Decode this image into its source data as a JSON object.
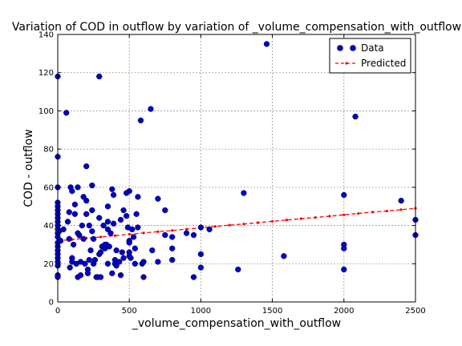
{
  "chart_data": {
    "type": "scatter",
    "title": "Variation of COD in outflow by variation of _volume_compensation_with_outflow",
    "xlabel": "_volume_compensation_with_outflow",
    "ylabel": "COD - outflow",
    "xlim": [
      0,
      2500
    ],
    "ylim": [
      0,
      140
    ],
    "xticks": [
      0,
      500,
      1000,
      1500,
      2000,
      2500
    ],
    "yticks": [
      0,
      20,
      40,
      60,
      80,
      100,
      120,
      140
    ],
    "grid": true,
    "legend_position": "top-right",
    "colors": {
      "data": "#0000cc",
      "predicted": "#ff0000"
    },
    "series": [
      {
        "name": "Data",
        "style": "markers",
        "points": [
          [
            0,
            118
          ],
          [
            0,
            76
          ],
          [
            0,
            60
          ],
          [
            0,
            52
          ],
          [
            0,
            50
          ],
          [
            0,
            48
          ],
          [
            0,
            46
          ],
          [
            0,
            44
          ],
          [
            0,
            42
          ],
          [
            0,
            40
          ],
          [
            0,
            38
          ],
          [
            0,
            36
          ],
          [
            0,
            34
          ],
          [
            0,
            31
          ],
          [
            0,
            29
          ],
          [
            0,
            27
          ],
          [
            0,
            25
          ],
          [
            0,
            23
          ],
          [
            0,
            21
          ],
          [
            0,
            19
          ],
          [
            0,
            14
          ],
          [
            0,
            13
          ],
          [
            10,
            37
          ],
          [
            20,
            32
          ],
          [
            40,
            38
          ],
          [
            60,
            99
          ],
          [
            70,
            42
          ],
          [
            80,
            33
          ],
          [
            80,
            47
          ],
          [
            85,
            18
          ],
          [
            90,
            60
          ],
          [
            100,
            58
          ],
          [
            100,
            23
          ],
          [
            100,
            21
          ],
          [
            110,
            30
          ],
          [
            120,
            46
          ],
          [
            120,
            51
          ],
          [
            130,
            20
          ],
          [
            140,
            60
          ],
          [
            140,
            36
          ],
          [
            140,
            13
          ],
          [
            150,
            35
          ],
          [
            160,
            14
          ],
          [
            160,
            21
          ],
          [
            170,
            40
          ],
          [
            180,
            55
          ],
          [
            180,
            33
          ],
          [
            190,
            20
          ],
          [
            200,
            71
          ],
          [
            200,
            53
          ],
          [
            200,
            46
          ],
          [
            210,
            15
          ],
          [
            210,
            17
          ],
          [
            220,
            40
          ],
          [
            220,
            22
          ],
          [
            230,
            27
          ],
          [
            240,
            61
          ],
          [
            240,
            48
          ],
          [
            240,
            37
          ],
          [
            250,
            33
          ],
          [
            250,
            20
          ],
          [
            260,
            22
          ],
          [
            270,
            13
          ],
          [
            280,
            13
          ],
          [
            290,
            118
          ],
          [
            290,
            44
          ],
          [
            290,
            25
          ],
          [
            300,
            13
          ],
          [
            300,
            26
          ],
          [
            310,
            29
          ],
          [
            320,
            40
          ],
          [
            330,
            30
          ],
          [
            330,
            28
          ],
          [
            340,
            30
          ],
          [
            350,
            50
          ],
          [
            350,
            42
          ],
          [
            350,
            38
          ],
          [
            350,
            20
          ],
          [
            360,
            29
          ],
          [
            370,
            36
          ],
          [
            380,
            59
          ],
          [
            380,
            15
          ],
          [
            390,
            56
          ],
          [
            390,
            41
          ],
          [
            400,
            22
          ],
          [
            400,
            20
          ],
          [
            410,
            27
          ],
          [
            410,
            19
          ],
          [
            430,
            21
          ],
          [
            440,
            43
          ],
          [
            440,
            14
          ],
          [
            450,
            26
          ],
          [
            460,
            48
          ],
          [
            460,
            23
          ],
          [
            480,
            57
          ],
          [
            480,
            45
          ],
          [
            490,
            39
          ],
          [
            500,
            58
          ],
          [
            500,
            32
          ],
          [
            500,
            31
          ],
          [
            500,
            26
          ],
          [
            500,
            24
          ],
          [
            510,
            23
          ],
          [
            520,
            38
          ],
          [
            530,
            34
          ],
          [
            540,
            20
          ],
          [
            540,
            28
          ],
          [
            550,
            46
          ],
          [
            560,
            39
          ],
          [
            560,
            55
          ],
          [
            580,
            95
          ],
          [
            590,
            20
          ],
          [
            600,
            21
          ],
          [
            600,
            13
          ],
          [
            650,
            101
          ],
          [
            660,
            27
          ],
          [
            700,
            54
          ],
          [
            700,
            21
          ],
          [
            750,
            48
          ],
          [
            750,
            35
          ],
          [
            800,
            34
          ],
          [
            800,
            28
          ],
          [
            800,
            22
          ],
          [
            900,
            36
          ],
          [
            950,
            35
          ],
          [
            950,
            13
          ],
          [
            1000,
            39
          ],
          [
            1000,
            25
          ],
          [
            1000,
            18
          ],
          [
            1060,
            38
          ],
          [
            1260,
            17
          ],
          [
            1300,
            57
          ],
          [
            1460,
            135
          ],
          [
            1580,
            24
          ],
          [
            2000,
            56
          ],
          [
            2000,
            30
          ],
          [
            2000,
            28
          ],
          [
            2000,
            17
          ],
          [
            2080,
            97
          ],
          [
            2400,
            53
          ],
          [
            2500,
            43
          ],
          [
            2500,
            35
          ]
        ]
      },
      {
        "name": "Predicted",
        "style": "dashed-line-with-markers",
        "x": [
          0,
          100,
          200,
          300,
          400,
          500,
          600,
          700,
          800,
          900,
          1000,
          1100,
          1200,
          1300,
          1400,
          1500,
          1600,
          1700,
          1800,
          1900,
          2000,
          2100,
          2200,
          2300,
          2400,
          2500
        ],
        "y": [
          32.0,
          32.7,
          33.4,
          34.0,
          34.7,
          35.4,
          36.1,
          36.8,
          37.4,
          38.1,
          38.8,
          39.5,
          40.2,
          40.8,
          41.5,
          42.2,
          42.9,
          43.6,
          44.2,
          44.9,
          45.6,
          46.3,
          47.0,
          47.6,
          48.3,
          49.0
        ]
      }
    ]
  }
}
